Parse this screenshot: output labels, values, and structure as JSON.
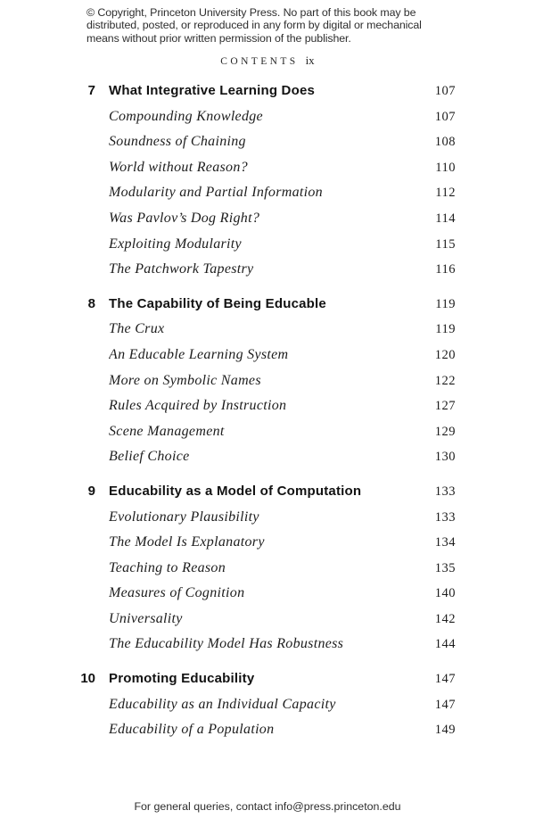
{
  "colors": {
    "paper": "#ffffff",
    "ink": "#1c1c1c"
  },
  "copyright": {
    "lines": [
      "© Copyright, Princeton University Press. No part of this book may be",
      "distributed, posted, or reproduced in any form by digital or mechanical",
      "means without prior written permission of the publisher."
    ]
  },
  "header": {
    "title": "CONTENTS",
    "folio": "ix"
  },
  "toc": {
    "sections": [
      {
        "number": "7",
        "title": "What Integrative Learning Does",
        "page": "107",
        "entries": [
          {
            "title": "Compounding Knowledge",
            "page": "107"
          },
          {
            "title": "Soundness of Chaining",
            "page": "108"
          },
          {
            "title": "World without Reason?",
            "page": "110"
          },
          {
            "title": "Modularity and Partial Information",
            "page": "112"
          },
          {
            "title": "Was Pavlov’s Dog Right?",
            "page": "114"
          },
          {
            "title": "Exploiting Modularity",
            "page": "115"
          },
          {
            "title": "The Patchwork Tapestry",
            "page": "116"
          }
        ]
      },
      {
        "number": "8",
        "title": "The Capability of Being Educable",
        "page": "119",
        "entries": [
          {
            "title": "The Crux",
            "page": "119"
          },
          {
            "title": "An Educable Learning System",
            "page": "120"
          },
          {
            "title": "More on Symbolic Names",
            "page": "122"
          },
          {
            "title": "Rules Acquired by Instruction",
            "page": "127"
          },
          {
            "title": "Scene Management",
            "page": "129"
          },
          {
            "title": "Belief Choice",
            "page": "130"
          }
        ]
      },
      {
        "number": "9",
        "title": "Educability as a Model of Computation",
        "page": "133",
        "entries": [
          {
            "title": "Evolutionary Plausibility",
            "page": "133"
          },
          {
            "title": "The Model Is Explanatory",
            "page": "134"
          },
          {
            "title": "Teaching to Reason",
            "page": "135"
          },
          {
            "title": "Measures of Cognition",
            "page": "140"
          },
          {
            "title": "Universality",
            "page": "142"
          },
          {
            "title": "The Educability Model Has Robustness",
            "page": "144"
          }
        ]
      },
      {
        "number": "10",
        "title": "Promoting Educability",
        "page": "147",
        "entries": [
          {
            "title": "Educability as an Individual Capacity",
            "page": "147"
          },
          {
            "title": "Educability of a Population",
            "page": "149"
          }
        ]
      }
    ]
  },
  "footer": {
    "text": "For general queries, contact info@press.princeton.edu"
  }
}
